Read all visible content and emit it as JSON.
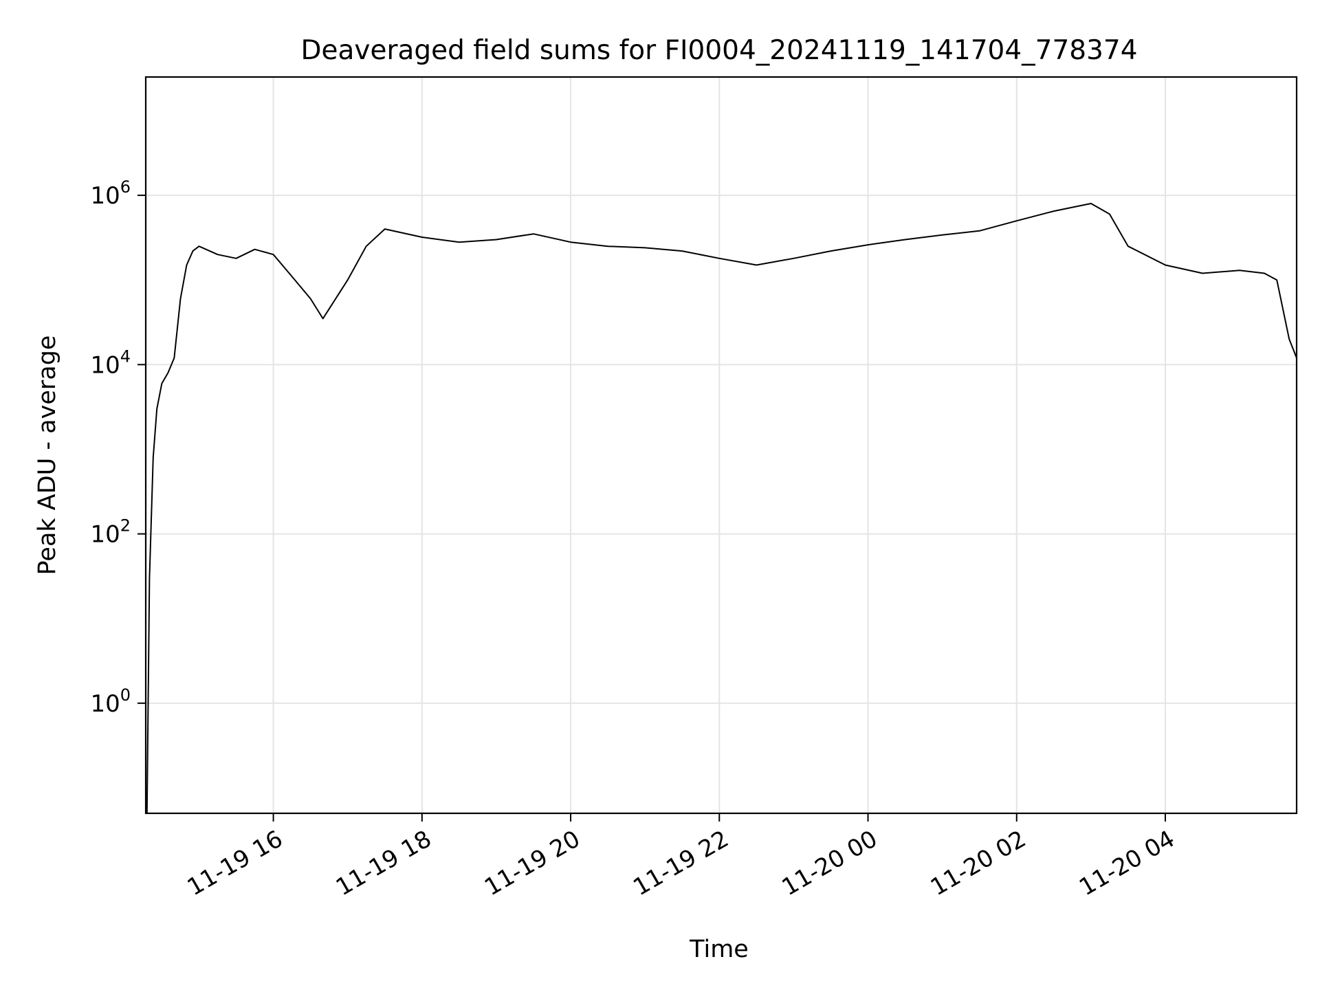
{
  "chart_data": {
    "type": "line",
    "title": "Deaveraged field sums for FI0004_20241119_141704_778374",
    "xlabel": "Time",
    "ylabel": "Peak ADU - average",
    "yscale": "log",
    "xlim": [
      "2024-11-19 14:17",
      "2024-11-20 05:46"
    ],
    "ylim": [
      0.05,
      25000000
    ],
    "grid": true,
    "x_ticks": [
      {
        "value": "2024-11-19 16:00",
        "label": "11-19 16"
      },
      {
        "value": "2024-11-19 18:00",
        "label": "11-19 18"
      },
      {
        "value": "2024-11-19 20:00",
        "label": "11-19 20"
      },
      {
        "value": "2024-11-19 22:00",
        "label": "11-19 22"
      },
      {
        "value": "2024-11-20 00:00",
        "label": "11-20 00"
      },
      {
        "value": "2024-11-20 02:00",
        "label": "11-20 02"
      },
      {
        "value": "2024-11-20 04:00",
        "label": "11-20 04"
      }
    ],
    "y_ticks": [
      {
        "value": 1,
        "base": "10",
        "exp": "0"
      },
      {
        "value": 100,
        "base": "10",
        "exp": "2"
      },
      {
        "value": 10000,
        "base": "10",
        "exp": "4"
      },
      {
        "value": 1000000,
        "base": "10",
        "exp": "6"
      }
    ],
    "series": [
      {
        "color": "#000000",
        "x": [
          "2024-11-19 14:17",
          "2024-11-19 14:18",
          "2024-11-19 14:20",
          "2024-11-19 14:23",
          "2024-11-19 14:26",
          "2024-11-19 14:30",
          "2024-11-19 14:35",
          "2024-11-19 14:40",
          "2024-11-19 14:45",
          "2024-11-19 14:50",
          "2024-11-19 14:55",
          "2024-11-19 15:00",
          "2024-11-19 15:15",
          "2024-11-19 15:30",
          "2024-11-19 15:45",
          "2024-11-19 16:00",
          "2024-11-19 16:15",
          "2024-11-19 16:30",
          "2024-11-19 16:40",
          "2024-11-19 17:00",
          "2024-11-19 17:15",
          "2024-11-19 17:30",
          "2024-11-19 18:00",
          "2024-11-19 18:30",
          "2024-11-19 19:00",
          "2024-11-19 19:30",
          "2024-11-19 20:00",
          "2024-11-19 20:30",
          "2024-11-19 21:00",
          "2024-11-19 21:30",
          "2024-11-19 22:00",
          "2024-11-19 22:30",
          "2024-11-19 23:00",
          "2024-11-19 23:30",
          "2024-11-20 00:00",
          "2024-11-20 00:30",
          "2024-11-20 01:00",
          "2024-11-20 01:30",
          "2024-11-20 02:00",
          "2024-11-20 02:30",
          "2024-11-20 03:00",
          "2024-11-20 03:15",
          "2024-11-20 03:30",
          "2024-11-20 04:00",
          "2024-11-20 04:30",
          "2024-11-20 05:00",
          "2024-11-20 05:20",
          "2024-11-20 05:30",
          "2024-11-20 05:40",
          "2024-11-20 05:46"
        ],
        "y": [
          0.04,
          0.05,
          30,
          800,
          3000,
          6000,
          8000,
          12000,
          60000,
          150000,
          220000,
          250000,
          200000,
          180000,
          230000,
          200000,
          110000,
          60000,
          35000,
          100000,
          250000,
          400000,
          320000,
          280000,
          300000,
          350000,
          280000,
          250000,
          240000,
          220000,
          180000,
          150000,
          180000,
          220000,
          260000,
          300000,
          340000,
          380000,
          500000,
          650000,
          800000,
          600000,
          250000,
          150000,
          120000,
          130000,
          120000,
          100000,
          20000,
          12000
        ]
      }
    ]
  }
}
